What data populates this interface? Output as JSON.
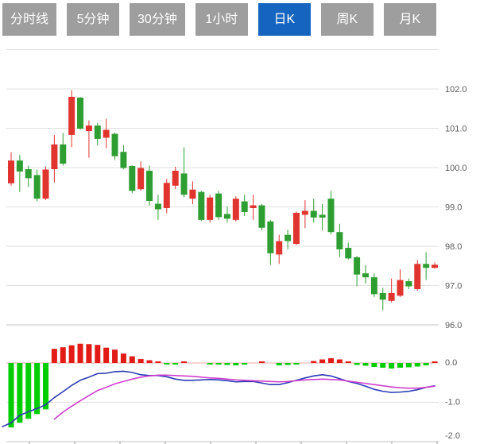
{
  "tabs": {
    "selected_index": 4,
    "items": [
      {
        "id": "time-line",
        "label": "分时线"
      },
      {
        "id": "5min",
        "label": "5分钟"
      },
      {
        "id": "30min",
        "label": "30分钟"
      },
      {
        "id": "1hour",
        "label": "1小时"
      },
      {
        "id": "daily-k",
        "label": "日K"
      },
      {
        "id": "weekly-k",
        "label": "周K"
      },
      {
        "id": "monthly-k",
        "label": "月K"
      }
    ],
    "active_color": "#1565c0",
    "inactive_color": "#9e9e9e"
  },
  "chart_data": {
    "type": "candlestick+macd",
    "title": "",
    "legend_position": "none",
    "grid": true,
    "price_axis": {
      "side": "right",
      "ylim": [
        95.6,
        103.0
      ],
      "ticks": [
        {
          "value": 102.0,
          "label": "102.0"
        },
        {
          "value": 101.0,
          "label": "101.0"
        },
        {
          "value": 100.0,
          "label": "100.0"
        },
        {
          "value": 99.0,
          "label": "99.0"
        },
        {
          "value": 98.0,
          "label": "98.0"
        },
        {
          "value": 97.0,
          "label": "97.0"
        },
        {
          "value": 96.0,
          "label": "96.0"
        }
      ]
    },
    "macd_axis": {
      "side": "right",
      "ylim": [
        -2.0,
        0.55
      ],
      "ticks": [
        {
          "value": 0.0,
          "label": "0.0"
        },
        {
          "value": -1.0,
          "label": "-1.0"
        },
        {
          "value": -2.0,
          "label": "-2.0"
        }
      ]
    },
    "ohlc_note": "values as [open, high, low, close]; red = close>=open (up), green = down",
    "ohlc": [
      [
        99.6,
        100.39,
        99.54,
        100.18
      ],
      [
        100.18,
        100.32,
        99.38,
        99.9
      ],
      [
        99.96,
        100.05,
        99.51,
        99.73
      ],
      [
        99.81,
        99.95,
        99.14,
        99.21
      ],
      [
        99.21,
        100.03,
        99.17,
        99.95
      ],
      [
        99.96,
        100.83,
        99.62,
        100.59
      ],
      [
        100.59,
        100.88,
        100.05,
        100.1
      ],
      [
        100.83,
        101.97,
        100.52,
        101.8
      ],
      [
        101.78,
        101.8,
        100.96,
        100.99
      ],
      [
        100.93,
        101.2,
        100.25,
        101.07
      ],
      [
        101.07,
        101.13,
        100.56,
        100.73
      ],
      [
        100.76,
        101.24,
        100.49,
        100.96
      ],
      [
        100.86,
        100.89,
        100.19,
        100.29
      ],
      [
        100.4,
        100.57,
        99.96,
        99.99
      ],
      [
        100.04,
        100.06,
        99.35,
        99.41
      ],
      [
        99.45,
        100.16,
        99.41,
        99.99
      ],
      [
        99.92,
        100.05,
        99.03,
        99.15
      ],
      [
        99.08,
        99.31,
        98.67,
        98.94
      ],
      [
        98.97,
        99.71,
        98.84,
        99.61
      ],
      [
        99.54,
        100.02,
        99.45,
        99.92
      ],
      [
        99.85,
        100.52,
        99.24,
        99.31
      ],
      [
        99.21,
        99.65,
        99.07,
        99.44
      ],
      [
        99.38,
        99.41,
        98.64,
        98.67
      ],
      [
        98.67,
        99.31,
        98.6,
        99.24
      ],
      [
        99.34,
        99.41,
        98.67,
        98.74
      ],
      [
        98.82,
        99.01,
        98.6,
        98.7
      ],
      [
        98.67,
        99.27,
        98.63,
        99.21
      ],
      [
        99.14,
        99.31,
        98.77,
        98.87
      ],
      [
        98.97,
        99.31,
        98.67,
        99.04
      ],
      [
        99.04,
        99.08,
        98.4,
        98.47
      ],
      [
        98.63,
        98.67,
        97.52,
        97.82
      ],
      [
        97.79,
        98.29,
        97.55,
        98.13
      ],
      [
        98.29,
        98.42,
        97.92,
        98.13
      ],
      [
        98.06,
        98.88,
        98.03,
        98.85
      ],
      [
        98.8,
        99.17,
        98.46,
        98.9
      ],
      [
        98.9,
        99.21,
        98.6,
        98.73
      ],
      [
        98.8,
        99.08,
        98.4,
        98.73
      ],
      [
        99.21,
        99.41,
        98.3,
        98.36
      ],
      [
        98.36,
        98.57,
        97.72,
        97.92
      ],
      [
        97.96,
        98.09,
        97.66,
        97.69
      ],
      [
        97.72,
        97.75,
        96.98,
        97.28
      ],
      [
        97.31,
        97.52,
        97.05,
        97.21
      ],
      [
        97.21,
        97.31,
        96.71,
        96.78
      ],
      [
        96.81,
        96.94,
        96.37,
        96.64
      ],
      [
        96.61,
        97.18,
        96.57,
        96.81
      ],
      [
        96.74,
        97.41,
        96.71,
        97.14
      ],
      [
        97.11,
        97.18,
        96.91,
        96.98
      ],
      [
        96.91,
        97.65,
        96.87,
        97.55
      ],
      [
        97.55,
        97.85,
        97.14,
        97.45
      ],
      [
        97.45,
        97.59,
        97.43,
        97.53
      ]
    ],
    "macd": {
      "histogram": [
        -1.64,
        -1.52,
        -1.42,
        -1.3,
        -1.18,
        0.36,
        0.4,
        0.45,
        0.49,
        0.48,
        0.46,
        0.39,
        0.34,
        0.24,
        0.17,
        0.1,
        0.07,
        0.02,
        -0.03,
        -0.03,
        0.02,
        0,
        0,
        -0.04,
        -0.04,
        -0.05,
        -0.06,
        -0.04,
        0,
        0.02,
        0,
        -0.06,
        -0.05,
        -0.04,
        0,
        0.05,
        0.09,
        0.12,
        0.09,
        0.04,
        -0.05,
        -0.07,
        -0.1,
        -0.12,
        -0.14,
        -0.12,
        -0.11,
        -0.09,
        -0.06,
        0.04
      ],
      "dif_lead": -1.62,
      "dif": [
        -1.52,
        -1.33,
        -1.24,
        -1.16,
        -1.06,
        -0.88,
        -0.73,
        -0.57,
        -0.44,
        -0.36,
        -0.27,
        -0.26,
        -0.22,
        -0.21,
        -0.24,
        -0.3,
        -0.32,
        -0.32,
        -0.35,
        -0.41,
        -0.44,
        -0.44,
        -0.43,
        -0.42,
        -0.43,
        -0.45,
        -0.48,
        -0.47,
        -0.47,
        -0.51,
        -0.55,
        -0.55,
        -0.5,
        -0.44,
        -0.38,
        -0.33,
        -0.3,
        -0.33,
        -0.4,
        -0.47,
        -0.52,
        -0.59,
        -0.67,
        -0.72,
        -0.75,
        -0.74,
        -0.72,
        -0.68,
        -0.62,
        -0.58
      ],
      "dea_start_index": 5,
      "dea": [
        -1.43,
        -1.25,
        -1.1,
        -0.96,
        -0.83,
        -0.7,
        -0.62,
        -0.53,
        -0.47,
        -0.41,
        -0.36,
        -0.33,
        -0.31,
        -0.31,
        -0.32,
        -0.33,
        -0.34,
        -0.36,
        -0.38,
        -0.39,
        -0.41,
        -0.43,
        -0.44,
        -0.45,
        -0.46,
        -0.47,
        -0.48,
        -0.47,
        -0.45,
        -0.43,
        -0.42,
        -0.41,
        -0.42,
        -0.43,
        -0.46,
        -0.49,
        -0.52,
        -0.55,
        -0.58,
        -0.61,
        -0.63,
        -0.64,
        -0.64,
        -0.62,
        -0.59
      ]
    },
    "colors": {
      "candle_up": "#e0352f",
      "candle_down": "#2f9e32",
      "hist_positive": "#e31b16",
      "hist_negative": "#00cd00",
      "dif_line": "#2b3ab5",
      "dea_line": "#cf3ecf",
      "grid_line": "#e0e0e0",
      "axis_line": "#c4c4c4",
      "zero_line": "#f0aaaa",
      "axis_text": "#5a5a5a"
    }
  }
}
